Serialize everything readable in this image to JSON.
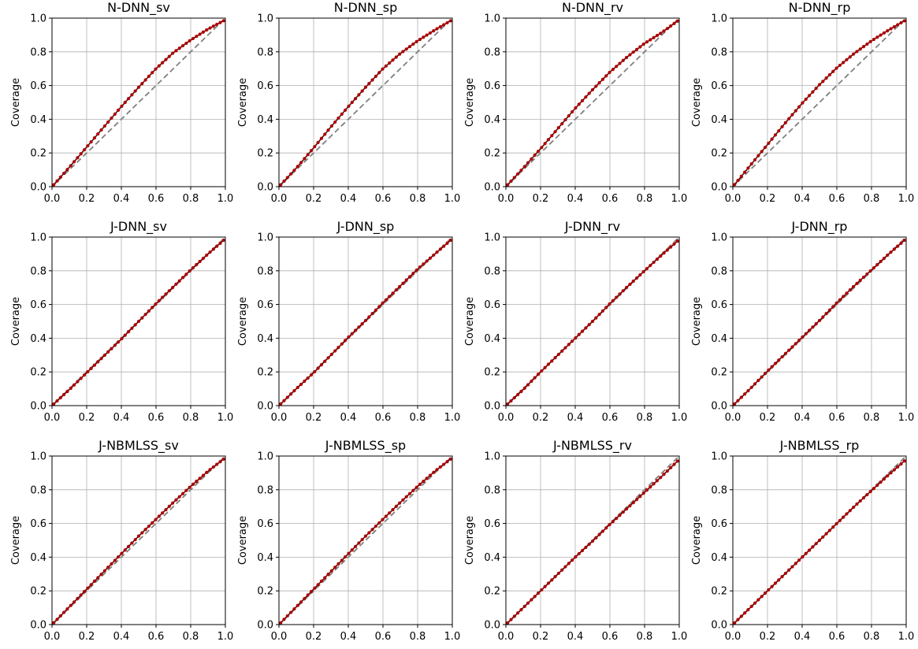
{
  "figure": {
    "ylabel": "Coverage",
    "xlim": [
      0,
      1
    ],
    "ylim": [
      0,
      1
    ],
    "ticks": [
      0.0,
      0.2,
      0.4,
      0.6,
      0.8,
      1.0
    ],
    "tick_labels": [
      "0.0",
      "0.2",
      "0.4",
      "0.6",
      "0.8",
      "1.0"
    ],
    "grid": true,
    "point_color": "#b00000",
    "line_color": "#4a1010",
    "diagonal_color": "#808080"
  },
  "chart_data": [
    {
      "type": "line",
      "title": "N-DNN_sv",
      "xlabel": "",
      "ylabel": "Coverage",
      "xlim": [
        0,
        1
      ],
      "ylim": [
        0,
        1
      ],
      "reference": "y = x (dashed gray)",
      "x": [
        0.0,
        0.1,
        0.2,
        0.3,
        0.4,
        0.5,
        0.6,
        0.7,
        0.8,
        0.9,
        1.0
      ],
      "y": [
        0.0,
        0.115,
        0.235,
        0.355,
        0.475,
        0.59,
        0.7,
        0.795,
        0.87,
        0.935,
        0.99
      ]
    },
    {
      "type": "line",
      "title": "N-DNN_sp",
      "xlabel": "",
      "ylabel": "Coverage",
      "xlim": [
        0,
        1
      ],
      "ylim": [
        0,
        1
      ],
      "reference": "y = x (dashed gray)",
      "x": [
        0.0,
        0.1,
        0.2,
        0.3,
        0.4,
        0.5,
        0.6,
        0.7,
        0.8,
        0.9,
        1.0
      ],
      "y": [
        0.0,
        0.11,
        0.23,
        0.355,
        0.475,
        0.59,
        0.7,
        0.79,
        0.865,
        0.93,
        0.99
      ]
    },
    {
      "type": "line",
      "title": "N-DNN_rv",
      "xlabel": "",
      "ylabel": "Coverage",
      "xlim": [
        0,
        1
      ],
      "ylim": [
        0,
        1
      ],
      "reference": "y = x (dashed gray)",
      "x": [
        0.0,
        0.1,
        0.2,
        0.3,
        0.4,
        0.5,
        0.6,
        0.7,
        0.8,
        0.9,
        1.0
      ],
      "y": [
        0.0,
        0.11,
        0.225,
        0.345,
        0.465,
        0.575,
        0.68,
        0.77,
        0.85,
        0.915,
        0.99
      ]
    },
    {
      "type": "line",
      "title": "N-DNN_rp",
      "xlabel": "",
      "ylabel": "Coverage",
      "xlim": [
        0,
        1
      ],
      "ylim": [
        0,
        1
      ],
      "reference": "y = x (dashed gray)",
      "x": [
        0.0,
        0.1,
        0.2,
        0.3,
        0.4,
        0.5,
        0.6,
        0.7,
        0.8,
        0.9,
        1.0
      ],
      "y": [
        0.0,
        0.125,
        0.25,
        0.375,
        0.495,
        0.605,
        0.705,
        0.79,
        0.865,
        0.93,
        0.99
      ]
    },
    {
      "type": "line",
      "title": "J-DNN_sv",
      "xlabel": "",
      "ylabel": "Coverage",
      "xlim": [
        0,
        1
      ],
      "ylim": [
        0,
        1
      ],
      "reference": "y = x (dashed gray)",
      "x": [
        0.0,
        0.1,
        0.2,
        0.3,
        0.4,
        0.5,
        0.6,
        0.7,
        0.8,
        0.9,
        1.0
      ],
      "y": [
        0.0,
        0.095,
        0.195,
        0.295,
        0.395,
        0.5,
        0.605,
        0.705,
        0.805,
        0.9,
        0.99
      ]
    },
    {
      "type": "line",
      "title": "J-DNN_sp",
      "xlabel": "",
      "ylabel": "Coverage",
      "xlim": [
        0,
        1
      ],
      "ylim": [
        0,
        1
      ],
      "reference": "y = x (dashed gray)",
      "x": [
        0.0,
        0.1,
        0.2,
        0.3,
        0.4,
        0.5,
        0.6,
        0.7,
        0.8,
        0.9,
        1.0
      ],
      "y": [
        0.0,
        0.1,
        0.195,
        0.3,
        0.405,
        0.505,
        0.61,
        0.71,
        0.81,
        0.9,
        0.99
      ]
    },
    {
      "type": "line",
      "title": "J-DNN_rv",
      "xlabel": "",
      "ylabel": "Coverage",
      "xlim": [
        0,
        1
      ],
      "ylim": [
        0,
        1
      ],
      "reference": "y = x (dashed gray)",
      "x": [
        0.0,
        0.1,
        0.2,
        0.3,
        0.4,
        0.5,
        0.6,
        0.7,
        0.8,
        0.9,
        1.0
      ],
      "y": [
        0.0,
        0.095,
        0.2,
        0.3,
        0.4,
        0.5,
        0.605,
        0.705,
        0.8,
        0.895,
        0.985
      ]
    },
    {
      "type": "line",
      "title": "J-DNN_rp",
      "xlabel": "",
      "ylabel": "Coverage",
      "xlim": [
        0,
        1
      ],
      "ylim": [
        0,
        1
      ],
      "reference": "y = x (dashed gray)",
      "x": [
        0.0,
        0.1,
        0.2,
        0.3,
        0.4,
        0.5,
        0.6,
        0.7,
        0.8,
        0.9,
        1.0
      ],
      "y": [
        0.0,
        0.1,
        0.205,
        0.305,
        0.405,
        0.505,
        0.61,
        0.71,
        0.805,
        0.9,
        0.99
      ]
    },
    {
      "type": "line",
      "title": "J-NBMLSS_sv",
      "xlabel": "",
      "ylabel": "Coverage",
      "xlim": [
        0,
        1
      ],
      "ylim": [
        0,
        1
      ],
      "reference": "y = x (dashed gray)",
      "x": [
        0.0,
        0.1,
        0.2,
        0.3,
        0.4,
        0.5,
        0.6,
        0.7,
        0.8,
        0.9,
        1.0
      ],
      "y": [
        0.0,
        0.105,
        0.21,
        0.315,
        0.42,
        0.525,
        0.625,
        0.725,
        0.82,
        0.91,
        0.99
      ]
    },
    {
      "type": "line",
      "title": "J-NBMLSS_sp",
      "xlabel": "",
      "ylabel": "Coverage",
      "xlim": [
        0,
        1
      ],
      "ylim": [
        0,
        1
      ],
      "reference": "y = x (dashed gray)",
      "x": [
        0.0,
        0.1,
        0.2,
        0.3,
        0.4,
        0.5,
        0.6,
        0.7,
        0.8,
        0.9,
        1.0
      ],
      "y": [
        0.0,
        0.105,
        0.21,
        0.315,
        0.42,
        0.525,
        0.625,
        0.725,
        0.82,
        0.91,
        0.99
      ]
    },
    {
      "type": "line",
      "title": "J-NBMLSS_rv",
      "xlabel": "",
      "ylabel": "Coverage",
      "xlim": [
        0,
        1
      ],
      "ylim": [
        0,
        1
      ],
      "reference": "y = x (dashed gray)",
      "x": [
        0.0,
        0.1,
        0.2,
        0.3,
        0.4,
        0.5,
        0.6,
        0.7,
        0.8,
        0.9,
        1.0
      ],
      "y": [
        0.0,
        0.1,
        0.2,
        0.3,
        0.4,
        0.495,
        0.595,
        0.69,
        0.785,
        0.88,
        0.98
      ]
    },
    {
      "type": "line",
      "title": "J-NBMLSS_rp",
      "xlabel": "",
      "ylabel": "Coverage",
      "xlim": [
        0,
        1
      ],
      "ylim": [
        0,
        1
      ],
      "reference": "y = x (dashed gray)",
      "x": [
        0.0,
        0.1,
        0.2,
        0.3,
        0.4,
        0.5,
        0.6,
        0.7,
        0.8,
        0.9,
        1.0
      ],
      "y": [
        0.0,
        0.1,
        0.2,
        0.3,
        0.4,
        0.5,
        0.6,
        0.7,
        0.795,
        0.89,
        0.98
      ]
    }
  ]
}
